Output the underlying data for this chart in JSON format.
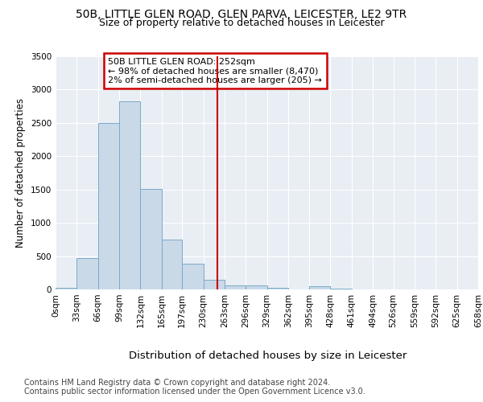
{
  "title1": "50B, LITTLE GLEN ROAD, GLEN PARVA, LEICESTER, LE2 9TR",
  "title2": "Size of property relative to detached houses in Leicester",
  "xlabel": "Distribution of detached houses by size in Leicester",
  "ylabel": "Number of detached properties",
  "bin_edges": [
    0,
    33,
    66,
    99,
    132,
    165,
    197,
    230,
    263,
    296,
    329,
    362,
    395,
    428,
    461,
    494,
    526,
    559,
    592,
    625,
    658
  ],
  "bar_heights": [
    20,
    470,
    2500,
    2820,
    1510,
    750,
    390,
    150,
    60,
    55,
    30,
    0,
    50,
    10,
    0,
    0,
    0,
    0,
    0,
    0
  ],
  "bar_color": "#c9d9e8",
  "bar_edgecolor": "#7aaac8",
  "vline_x": 252,
  "vline_color": "#cc0000",
  "annotation_text": "50B LITTLE GLEN ROAD: 252sqm\n← 98% of detached houses are smaller (8,470)\n2% of semi-detached houses are larger (205) →",
  "annotation_box_edgecolor": "#cc0000",
  "ylim": [
    0,
    3500
  ],
  "yticks": [
    0,
    500,
    1000,
    1500,
    2000,
    2500,
    3000,
    3500
  ],
  "background_color": "#e8eef4",
  "footer_line1": "Contains HM Land Registry data © Crown copyright and database right 2024.",
  "footer_line2": "Contains public sector information licensed under the Open Government Licence v3.0.",
  "title1_fontsize": 10,
  "title2_fontsize": 9,
  "xlabel_fontsize": 9.5,
  "ylabel_fontsize": 8.5,
  "tick_fontsize": 7.5,
  "footer_fontsize": 7,
  "annot_fontsize": 8
}
